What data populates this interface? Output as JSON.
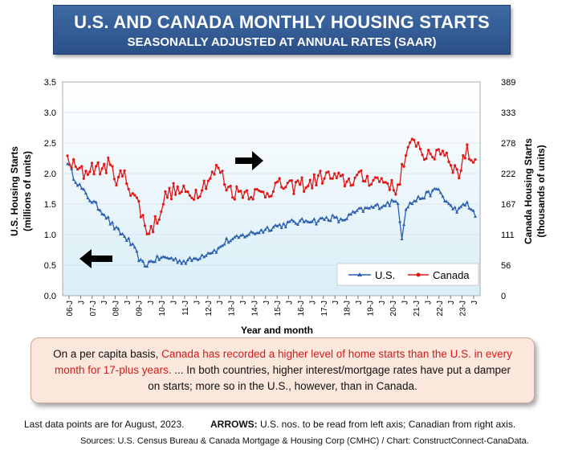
{
  "header": {
    "title": "U.S. AND CANADA MONTHLY HOUSING STARTS",
    "subtitle": "SEASONALLY ADJUSTED AT ANNUAL RATES (SAAR)"
  },
  "chart_data": {
    "type": "line",
    "xlabel": "Year and month",
    "ylabel_left": [
      "U.S. Housing Starts",
      "(millions of units)"
    ],
    "ylabel_right": [
      "Canada Housing Starts",
      "(thousands of units)"
    ],
    "ylim_left": [
      0,
      3.5
    ],
    "ylim_right": [
      0,
      389
    ],
    "yticks_left": [
      "0.0",
      "0.5",
      "1.0",
      "1.5",
      "2.0",
      "2.5",
      "3.0",
      "3.5"
    ],
    "yticks_right": [
      "0",
      "56",
      "111",
      "167",
      "222",
      "278",
      "333",
      "389"
    ],
    "x_ticks": [
      "06-J",
      "J",
      "07-J",
      "J",
      "08-J",
      "J",
      "09-J",
      "J",
      "10-J",
      "J",
      "11-J",
      "J",
      "12-J",
      "J",
      "13-J",
      "J",
      "14-J",
      "J",
      "15-J",
      "J",
      "16-J",
      "J",
      "17-J",
      "J",
      "18-J",
      "J",
      "19-J",
      "J",
      "20-J",
      "J",
      "21-J",
      "J",
      "22-J",
      "J",
      "23-J",
      "J"
    ],
    "legend": [
      {
        "name": "U.S.",
        "color": "#2a5fb0"
      },
      {
        "name": "Canada",
        "color": "#e01818"
      }
    ],
    "series": [
      {
        "name": "U.S.",
        "axis": "left",
        "color": "#2a5fb0",
        "anchors": [
          [
            0,
            2.2
          ],
          [
            3,
            1.95
          ],
          [
            6,
            1.8
          ],
          [
            9,
            1.65
          ],
          [
            12,
            1.55
          ],
          [
            15,
            1.45
          ],
          [
            18,
            1.35
          ],
          [
            21,
            1.2
          ],
          [
            24,
            1.08
          ],
          [
            27,
            1.0
          ],
          [
            30,
            0.9
          ],
          [
            33,
            0.75
          ],
          [
            36,
            0.55
          ],
          [
            38,
            0.5
          ],
          [
            42,
            0.58
          ],
          [
            46,
            0.62
          ],
          [
            50,
            0.62
          ],
          [
            54,
            0.58
          ],
          [
            58,
            0.56
          ],
          [
            62,
            0.6
          ],
          [
            66,
            0.66
          ],
          [
            70,
            0.72
          ],
          [
            74,
            0.76
          ],
          [
            78,
            0.9
          ],
          [
            82,
            0.92
          ],
          [
            86,
            0.98
          ],
          [
            90,
            1.02
          ],
          [
            94,
            1.05
          ],
          [
            98,
            1.1
          ],
          [
            102,
            1.14
          ],
          [
            106,
            1.16
          ],
          [
            110,
            1.2
          ],
          [
            114,
            1.2
          ],
          [
            118,
            1.25
          ],
          [
            122,
            1.22
          ],
          [
            126,
            1.26
          ],
          [
            130,
            1.28
          ],
          [
            134,
            1.22
          ],
          [
            138,
            1.3
          ],
          [
            142,
            1.38
          ],
          [
            162,
            1.55
          ],
          [
            164,
            0.95
          ],
          [
            166,
            1.45
          ],
          [
            170,
            1.55
          ],
          [
            174,
            1.62
          ],
          [
            178,
            1.68
          ],
          [
            182,
            1.75
          ],
          [
            184,
            1.62
          ],
          [
            188,
            1.45
          ],
          [
            192,
            1.4
          ],
          [
            196,
            1.52
          ],
          [
            200,
            1.3
          ]
        ],
        "noise": 0.05
      },
      {
        "name": "Canada",
        "axis": "right",
        "color": "#e01818",
        "anchors": [
          [
            0,
            248
          ],
          [
            4,
            232
          ],
          [
            8,
            222
          ],
          [
            12,
            235
          ],
          [
            16,
            230
          ],
          [
            20,
            238
          ],
          [
            24,
            215
          ],
          [
            28,
            218
          ],
          [
            30,
            200
          ],
          [
            32,
            190
          ],
          [
            35,
            165
          ],
          [
            38,
            128
          ],
          [
            40,
            115
          ],
          [
            44,
            140
          ],
          [
            48,
            180
          ],
          [
            52,
            192
          ],
          [
            56,
            188
          ],
          [
            60,
            185
          ],
          [
            64,
            190
          ],
          [
            68,
            208
          ],
          [
            72,
            222
          ],
          [
            74,
            235
          ],
          [
            76,
            218
          ],
          [
            78,
            200
          ],
          [
            82,
            188
          ],
          [
            86,
            190
          ],
          [
            90,
            188
          ],
          [
            94,
            185
          ],
          [
            98,
            188
          ],
          [
            102,
            200
          ],
          [
            106,
            200
          ],
          [
            110,
            196
          ],
          [
            114,
            205
          ],
          [
            118,
            200
          ],
          [
            122,
            212
          ],
          [
            126,
            218
          ],
          [
            130,
            215
          ],
          [
            134,
            210
          ],
          [
            138,
            208
          ],
          [
            142,
            215
          ],
          [
            150,
            212
          ],
          [
            155,
            210
          ],
          [
            158,
            205
          ],
          [
            160,
            190
          ],
          [
            162,
            200
          ],
          [
            164,
            230
          ],
          [
            168,
            268
          ],
          [
            170,
            290
          ],
          [
            172,
            275
          ],
          [
            174,
            262
          ],
          [
            178,
            248
          ],
          [
            182,
            268
          ],
          [
            186,
            258
          ],
          [
            190,
            230
          ],
          [
            192,
            220
          ],
          [
            194,
            252
          ],
          [
            196,
            262
          ],
          [
            198,
            250
          ],
          [
            200,
            245
          ]
        ],
        "noise": 14
      }
    ]
  },
  "arrows": {
    "right_arrow": "arrow-right",
    "left_arrow": "arrow-left"
  },
  "note": {
    "line1_pre": "On a per capita basis, ",
    "line1_red": "Canada has recorded a higher level of home starts than the U.S. in every",
    "line2_red": "month for 17-plus years.",
    "line2_post": " ... In both countries, higher interest/mortgage rates have put a damper",
    "line3": "on starts; more so in the U.S., however, than in Canada."
  },
  "footer": {
    "last_data": "Last data points are for August, 2023.",
    "arrows_label": "ARROWS:",
    "arrows_text": " U.S. nos. to be read from left axis; Canadian from right axis.",
    "sources": "Sources: U.S. Census Bureau & Canada Mortgage & Housing Corp (CMHC) / Chart: ConstructConnect-CanaData."
  }
}
